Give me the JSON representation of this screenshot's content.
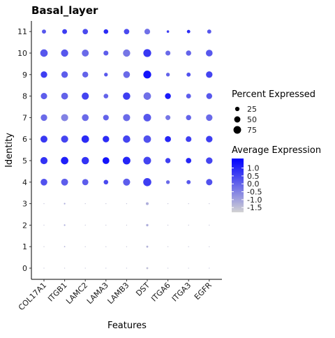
{
  "chart_data": {
    "type": "dotplot",
    "title": "Basal_layer",
    "xlabel": "Features",
    "ylabel": "Identity",
    "features": [
      "COL17A1",
      "ITGB1",
      "LAMC2",
      "LAMA3",
      "LAMB3",
      "DST",
      "ITGA6",
      "ITGA3",
      "EGFR"
    ],
    "identities": [
      "0",
      "1",
      "2",
      "3",
      "4",
      "5",
      "6",
      "7",
      "8",
      "9",
      "10",
      "11"
    ],
    "percent_expressed": [
      [
        1,
        1,
        1,
        1,
        1,
        5,
        1,
        1,
        1
      ],
      [
        1,
        2,
        1,
        1,
        1,
        5,
        1,
        1,
        1
      ],
      [
        1,
        3,
        1,
        1,
        1,
        7,
        1,
        1,
        1
      ],
      [
        1,
        3,
        1,
        1,
        1,
        10,
        1,
        1,
        1
      ],
      [
        58,
        62,
        50,
        28,
        65,
        85,
        18,
        22,
        52
      ],
      [
        65,
        72,
        70,
        60,
        75,
        75,
        35,
        38,
        55
      ],
      [
        62,
        65,
        72,
        55,
        70,
        72,
        48,
        42,
        55
      ],
      [
        55,
        65,
        60,
        42,
        65,
        75,
        32,
        35,
        55
      ],
      [
        52,
        60,
        65,
        28,
        70,
        72,
        45,
        30,
        45
      ],
      [
        55,
        55,
        45,
        18,
        58,
        80,
        18,
        22,
        55
      ],
      [
        72,
        68,
        62,
        32,
        68,
        80,
        32,
        35,
        58
      ],
      [
        22,
        30,
        38,
        28,
        38,
        42,
        8,
        15,
        22
      ]
    ],
    "average_expression": [
      [
        -1.5,
        -1.5,
        -1.5,
        -1.5,
        -1.5,
        -1.5,
        -1.5,
        -1.5,
        -1.5
      ],
      [
        -1.5,
        -1.3,
        -1.5,
        -1.5,
        -1.5,
        -1.3,
        -1.5,
        -1.5,
        -1.5
      ],
      [
        -1.5,
        -1.2,
        -1.5,
        -1.5,
        -1.5,
        -1.2,
        -1.5,
        -1.5,
        -1.5
      ],
      [
        -1.5,
        -1.2,
        -1.5,
        -1.5,
        -1.5,
        -1.2,
        -1.5,
        -1.5,
        -1.5
      ],
      [
        0.3,
        0.1,
        0.1,
        0.4,
        0.1,
        0.6,
        -0.1,
        0.2,
        0.3
      ],
      [
        0.8,
        1.1,
        0.8,
        1.3,
        1.0,
        0.5,
        0.6,
        1.0,
        0.5
      ],
      [
        0.7,
        0.5,
        0.9,
        0.9,
        0.5,
        0.3,
        1.0,
        0.6,
        0.6
      ],
      [
        -0.1,
        -0.5,
        -0.1,
        0.0,
        -0.1,
        0.2,
        -0.3,
        0.0,
        -0.1
      ],
      [
        0.1,
        0.0,
        0.5,
        0.0,
        0.6,
        -0.2,
        1.2,
        0.1,
        0.2
      ],
      [
        0.6,
        0.1,
        0.0,
        0.2,
        -0.1,
        1.3,
        0.0,
        0.3,
        0.5
      ],
      [
        0.2,
        0.2,
        -0.1,
        0.1,
        -0.3,
        0.7,
        -0.1,
        0.0,
        0.2
      ],
      [
        0.2,
        0.6,
        0.4,
        0.9,
        0.4,
        -0.2,
        0.6,
        0.9,
        0.2
      ]
    ],
    "size_legend": {
      "title": "Percent Expressed",
      "values": [
        25,
        50,
        75
      ],
      "labels": [
        "25",
        "50",
        "75"
      ]
    },
    "color_legend": {
      "title": "Average Expression",
      "range": [
        -1.8,
        1.6
      ],
      "ticks": [
        1.0,
        0.5,
        0.0,
        -0.5,
        -1.0,
        -1.5
      ],
      "labels": [
        "1.0",
        "0.5",
        "0.0",
        "-0.5",
        "-1.0",
        "-1.5"
      ],
      "low_color": "#d3d3d3",
      "high_color": "#0000ff"
    },
    "grid": false,
    "legend_position": "right"
  }
}
